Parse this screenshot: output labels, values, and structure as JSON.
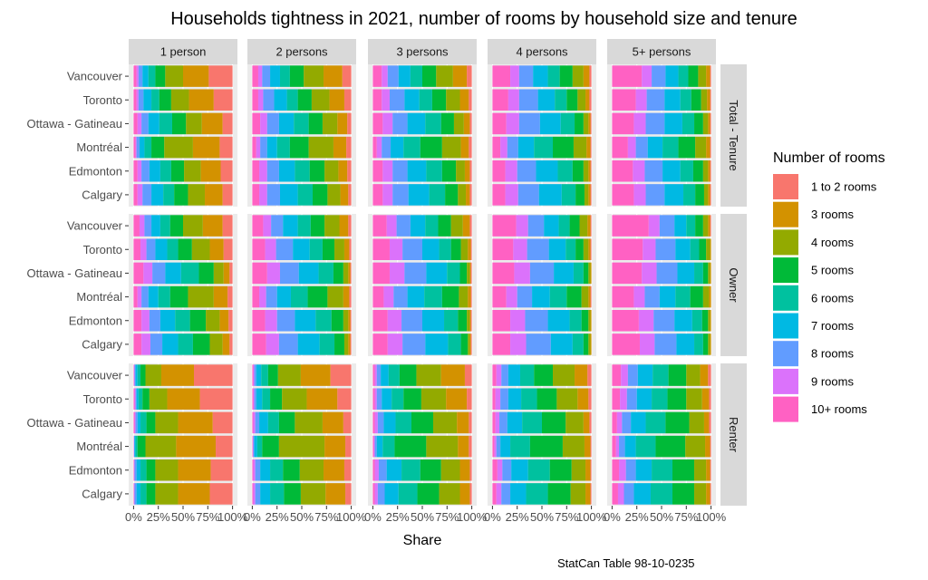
{
  "chart_data": {
    "type": "bar",
    "orientation": "horizontal",
    "stacked": true,
    "position": "fill",
    "title": "Households tightness in 2021, number of rooms by household size and tenure",
    "xlabel": "Share",
    "ylabel": "",
    "caption": "StatCan Table 98-10-0235",
    "x_ticks": [
      "0%",
      "25%",
      "50%",
      "75%",
      "100%"
    ],
    "xlim": [
      0,
      1
    ],
    "cities": [
      "Vancouver",
      "Toronto",
      "Ottawa - Gatineau",
      "Montréal",
      "Edmonton",
      "Calgary"
    ],
    "household_sizes": [
      "1 person",
      "2 persons",
      "3 persons",
      "4 persons",
      "5+ persons"
    ],
    "tenures": [
      "Total - Tenure",
      "Owner",
      "Renter"
    ],
    "legend": {
      "title": "Number of rooms",
      "position": "right",
      "categories": [
        "1 to 2 rooms",
        "3 rooms",
        "4 rooms",
        "5 rooms",
        "6 rooms",
        "7 rooms",
        "8 rooms",
        "9 rooms",
        "10+ rooms"
      ],
      "colors": [
        "#F8766D",
        "#D39200",
        "#93AA00",
        "#00BA38",
        "#00C19F",
        "#00B9E3",
        "#619CFF",
        "#DB72FB",
        "#FF61C3"
      ]
    },
    "stack_order_note": "values listed from 1 to 2 rooms through 10+ rooms; 10+ rooms is drawn at the left (0%) end",
    "panels": {
      "Total - Tenure": {
        "1 person": {
          "Vancouver": [
            0.24,
            0.26,
            0.18,
            0.1,
            0.07,
            0.06,
            0.04,
            0.02,
            0.03
          ],
          "Toronto": [
            0.19,
            0.25,
            0.18,
            0.12,
            0.08,
            0.08,
            0.05,
            0.02,
            0.03
          ],
          "Ottawa - Gatineau": [
            0.1,
            0.21,
            0.16,
            0.14,
            0.13,
            0.11,
            0.07,
            0.04,
            0.04
          ],
          "Montréal": [
            0.13,
            0.27,
            0.29,
            0.13,
            0.07,
            0.05,
            0.03,
            0.01,
            0.02
          ],
          "Edmonton": [
            0.12,
            0.2,
            0.17,
            0.13,
            0.11,
            0.11,
            0.08,
            0.04,
            0.04
          ],
          "Calgary": [
            0.1,
            0.18,
            0.17,
            0.14,
            0.11,
            0.12,
            0.09,
            0.05,
            0.04
          ]
        },
        "2 persons": {
          "Vancouver": [
            0.09,
            0.19,
            0.2,
            0.14,
            0.1,
            0.1,
            0.08,
            0.04,
            0.06
          ],
          "Toronto": [
            0.07,
            0.15,
            0.18,
            0.14,
            0.11,
            0.13,
            0.11,
            0.05,
            0.06
          ],
          "Ottawa - Gatineau": [
            0.04,
            0.1,
            0.15,
            0.14,
            0.15,
            0.15,
            0.12,
            0.07,
            0.08
          ],
          "Montréal": [
            0.05,
            0.13,
            0.25,
            0.19,
            0.13,
            0.1,
            0.07,
            0.04,
            0.04
          ],
          "Edmonton": [
            0.04,
            0.09,
            0.14,
            0.15,
            0.15,
            0.16,
            0.12,
            0.08,
            0.07
          ],
          "Calgary": [
            0.03,
            0.08,
            0.13,
            0.15,
            0.15,
            0.18,
            0.13,
            0.08,
            0.07
          ]
        },
        "3 persons": {
          "Vancouver": [
            0.05,
            0.14,
            0.17,
            0.14,
            0.12,
            0.12,
            0.11,
            0.06,
            0.09
          ],
          "Toronto": [
            0.03,
            0.09,
            0.14,
            0.14,
            0.13,
            0.15,
            0.15,
            0.08,
            0.09
          ],
          "Ottawa - Gatineau": [
            0.02,
            0.06,
            0.1,
            0.13,
            0.16,
            0.18,
            0.15,
            0.1,
            0.1
          ],
          "Montréal": [
            0.03,
            0.08,
            0.19,
            0.22,
            0.17,
            0.13,
            0.09,
            0.05,
            0.04
          ],
          "Edmonton": [
            0.02,
            0.05,
            0.09,
            0.14,
            0.16,
            0.19,
            0.15,
            0.1,
            0.1
          ],
          "Calgary": [
            0.02,
            0.04,
            0.08,
            0.13,
            0.16,
            0.21,
            0.16,
            0.1,
            0.1
          ]
        },
        "4 persons": {
          "Vancouver": [
            0.02,
            0.06,
            0.11,
            0.13,
            0.12,
            0.15,
            0.14,
            0.09,
            0.18
          ],
          "Toronto": [
            0.02,
            0.04,
            0.08,
            0.11,
            0.12,
            0.17,
            0.19,
            0.11,
            0.16
          ],
          "Ottawa - Gatineau": [
            0.01,
            0.02,
            0.05,
            0.09,
            0.14,
            0.21,
            0.21,
            0.13,
            0.14
          ],
          "Montréal": [
            0.01,
            0.04,
            0.13,
            0.21,
            0.19,
            0.16,
            0.11,
            0.07,
            0.08
          ],
          "Edmonton": [
            0.01,
            0.02,
            0.05,
            0.11,
            0.15,
            0.22,
            0.19,
            0.12,
            0.13
          ],
          "Calgary": [
            0.01,
            0.02,
            0.04,
            0.09,
            0.14,
            0.23,
            0.21,
            0.13,
            0.13
          ]
        },
        "5+ persons": {
          "Vancouver": [
            0.01,
            0.04,
            0.08,
            0.1,
            0.1,
            0.13,
            0.14,
            0.1,
            0.3
          ],
          "Toronto": [
            0.01,
            0.03,
            0.06,
            0.1,
            0.11,
            0.16,
            0.18,
            0.11,
            0.24
          ],
          "Ottawa - Gatineau": [
            0.01,
            0.02,
            0.05,
            0.09,
            0.12,
            0.18,
            0.19,
            0.12,
            0.22
          ],
          "Montréal": [
            0.01,
            0.04,
            0.11,
            0.17,
            0.16,
            0.15,
            0.12,
            0.08,
            0.16
          ],
          "Edmonton": [
            0.01,
            0.02,
            0.05,
            0.1,
            0.13,
            0.18,
            0.18,
            0.12,
            0.21
          ],
          "Calgary": [
            0.01,
            0.02,
            0.04,
            0.09,
            0.12,
            0.19,
            0.19,
            0.12,
            0.22
          ]
        }
      },
      "Owner": {
        "1 person": {
          "Vancouver": [
            0.1,
            0.2,
            0.2,
            0.13,
            0.1,
            0.09,
            0.07,
            0.05,
            0.06
          ],
          "Toronto": [
            0.09,
            0.14,
            0.18,
            0.14,
            0.11,
            0.12,
            0.09,
            0.06,
            0.07
          ],
          "Ottawa - Gatineau": [
            0.03,
            0.06,
            0.1,
            0.15,
            0.18,
            0.16,
            0.13,
            0.09,
            0.1
          ],
          "Montréal": [
            0.05,
            0.14,
            0.26,
            0.18,
            0.12,
            0.1,
            0.07,
            0.04,
            0.04
          ],
          "Edmonton": [
            0.04,
            0.09,
            0.14,
            0.16,
            0.15,
            0.15,
            0.11,
            0.08,
            0.08
          ],
          "Calgary": [
            0.03,
            0.07,
            0.13,
            0.17,
            0.15,
            0.16,
            0.12,
            0.09,
            0.08
          ]
        },
        "2 persons": {
          "Vancouver": [
            0.03,
            0.09,
            0.15,
            0.14,
            0.13,
            0.15,
            0.12,
            0.08,
            0.11
          ],
          "Toronto": [
            0.02,
            0.05,
            0.1,
            0.12,
            0.13,
            0.17,
            0.17,
            0.11,
            0.13
          ],
          "Ottawa - Gatineau": [
            0.01,
            0.02,
            0.05,
            0.1,
            0.15,
            0.2,
            0.19,
            0.13,
            0.15
          ],
          "Montréal": [
            0.02,
            0.06,
            0.16,
            0.2,
            0.17,
            0.14,
            0.11,
            0.07,
            0.07
          ],
          "Edmonton": [
            0.01,
            0.02,
            0.05,
            0.12,
            0.16,
            0.21,
            0.18,
            0.12,
            0.13
          ],
          "Calgary": [
            0.01,
            0.02,
            0.04,
            0.1,
            0.15,
            0.22,
            0.19,
            0.13,
            0.14
          ]
        },
        "3 persons": {
          "Vancouver": [
            0.02,
            0.07,
            0.12,
            0.13,
            0.13,
            0.15,
            0.14,
            0.1,
            0.14
          ],
          "Toronto": [
            0.01,
            0.03,
            0.07,
            0.1,
            0.12,
            0.17,
            0.2,
            0.13,
            0.17
          ],
          "Ottawa - Gatineau": [
            0.01,
            0.01,
            0.03,
            0.07,
            0.13,
            0.21,
            0.22,
            0.15,
            0.17
          ],
          "Montréal": [
            0.01,
            0.03,
            0.09,
            0.17,
            0.18,
            0.17,
            0.14,
            0.1,
            0.11
          ],
          "Edmonton": [
            0.01,
            0.01,
            0.03,
            0.09,
            0.14,
            0.22,
            0.21,
            0.14,
            0.15
          ],
          "Calgary": [
            0.01,
            0.01,
            0.02,
            0.07,
            0.13,
            0.23,
            0.23,
            0.15,
            0.15
          ]
        },
        "4 persons": {
          "Vancouver": [
            0.01,
            0.03,
            0.08,
            0.1,
            0.11,
            0.15,
            0.16,
            0.12,
            0.24
          ],
          "Toronto": [
            0.01,
            0.02,
            0.05,
            0.08,
            0.1,
            0.17,
            0.22,
            0.14,
            0.21
          ],
          "Ottawa - Gatineau": [
            0.0,
            0.01,
            0.02,
            0.05,
            0.1,
            0.2,
            0.24,
            0.16,
            0.22
          ],
          "Montréal": [
            0.01,
            0.02,
            0.07,
            0.15,
            0.17,
            0.18,
            0.15,
            0.11,
            0.14
          ],
          "Edmonton": [
            0.0,
            0.01,
            0.02,
            0.07,
            0.12,
            0.22,
            0.23,
            0.15,
            0.18
          ],
          "Calgary": [
            0.0,
            0.01,
            0.02,
            0.05,
            0.11,
            0.22,
            0.25,
            0.16,
            0.18
          ]
        },
        "5+ persons": {
          "Vancouver": [
            0.01,
            0.02,
            0.05,
            0.08,
            0.09,
            0.12,
            0.15,
            0.11,
            0.37
          ],
          "Toronto": [
            0.0,
            0.01,
            0.04,
            0.07,
            0.09,
            0.15,
            0.2,
            0.13,
            0.31
          ],
          "Ottawa - Gatineau": [
            0.0,
            0.01,
            0.02,
            0.05,
            0.09,
            0.17,
            0.21,
            0.15,
            0.3
          ],
          "Montréal": [
            0.0,
            0.02,
            0.06,
            0.13,
            0.15,
            0.16,
            0.15,
            0.11,
            0.22
          ],
          "Edmonton": [
            0.0,
            0.01,
            0.02,
            0.06,
            0.1,
            0.18,
            0.21,
            0.15,
            0.27
          ],
          "Calgary": [
            0.0,
            0.01,
            0.02,
            0.05,
            0.09,
            0.18,
            0.22,
            0.15,
            0.28
          ]
        }
      },
      "Renter": {
        "1 person": {
          "Vancouver": [
            0.39,
            0.33,
            0.16,
            0.05,
            0.03,
            0.02,
            0.01,
            0.005,
            0.005
          ],
          "Toronto": [
            0.33,
            0.33,
            0.18,
            0.07,
            0.04,
            0.02,
            0.01,
            0.01,
            0.01
          ],
          "Ottawa - Gatineau": [
            0.2,
            0.35,
            0.23,
            0.09,
            0.06,
            0.03,
            0.02,
            0.01,
            0.01
          ],
          "Montréal": [
            0.17,
            0.4,
            0.31,
            0.08,
            0.02,
            0.01,
            0.005,
            0.0025,
            0.0025
          ],
          "Edmonton": [
            0.22,
            0.33,
            0.23,
            0.09,
            0.06,
            0.04,
            0.02,
            0.005,
            0.005
          ],
          "Calgary": [
            0.23,
            0.32,
            0.23,
            0.09,
            0.06,
            0.04,
            0.02,
            0.005,
            0.005
          ]
        },
        "2 persons": {
          "Vancouver": [
            0.21,
            0.3,
            0.23,
            0.1,
            0.07,
            0.05,
            0.02,
            0.01,
            0.01
          ],
          "Toronto": [
            0.14,
            0.31,
            0.25,
            0.12,
            0.08,
            0.06,
            0.02,
            0.01,
            0.01
          ],
          "Ottawa - Gatineau": [
            0.08,
            0.21,
            0.28,
            0.16,
            0.11,
            0.09,
            0.04,
            0.02,
            0.01
          ],
          "Montréal": [
            0.06,
            0.21,
            0.46,
            0.17,
            0.05,
            0.03,
            0.01,
            0.005,
            0.005
          ],
          "Edmonton": [
            0.07,
            0.21,
            0.24,
            0.17,
            0.13,
            0.1,
            0.05,
            0.02,
            0.01
          ],
          "Calgary": [
            0.06,
            0.2,
            0.25,
            0.17,
            0.14,
            0.1,
            0.05,
            0.02,
            0.01
          ]
        },
        "3 persons": {
          "Vancouver": [
            0.07,
            0.24,
            0.25,
            0.17,
            0.11,
            0.08,
            0.04,
            0.02,
            0.02
          ],
          "Toronto": [
            0.05,
            0.21,
            0.25,
            0.18,
            0.12,
            0.1,
            0.05,
            0.02,
            0.02
          ],
          "Ottawa - Gatineau": [
            0.03,
            0.12,
            0.24,
            0.22,
            0.16,
            0.12,
            0.06,
            0.03,
            0.02
          ],
          "Montréal": [
            0.03,
            0.11,
            0.32,
            0.32,
            0.12,
            0.06,
            0.02,
            0.01,
            0.01
          ],
          "Edmonton": [
            0.02,
            0.1,
            0.19,
            0.21,
            0.19,
            0.15,
            0.08,
            0.04,
            0.02
          ],
          "Calgary": [
            0.02,
            0.1,
            0.21,
            0.22,
            0.19,
            0.14,
            0.07,
            0.03,
            0.02
          ]
        },
        "4 persons": {
          "Vancouver": [
            0.04,
            0.13,
            0.22,
            0.19,
            0.14,
            0.12,
            0.07,
            0.05,
            0.04
          ],
          "Toronto": [
            0.03,
            0.11,
            0.21,
            0.2,
            0.16,
            0.13,
            0.08,
            0.05,
            0.03
          ],
          "Ottawa - Gatineau": [
            0.02,
            0.06,
            0.18,
            0.24,
            0.2,
            0.15,
            0.08,
            0.04,
            0.03
          ],
          "Montréal": [
            0.01,
            0.06,
            0.22,
            0.33,
            0.2,
            0.1,
            0.04,
            0.02,
            0.02
          ],
          "Edmonton": [
            0.01,
            0.05,
            0.14,
            0.22,
            0.22,
            0.17,
            0.09,
            0.05,
            0.05
          ],
          "Calgary": [
            0.01,
            0.05,
            0.15,
            0.23,
            0.22,
            0.16,
            0.09,
            0.05,
            0.04
          ]
        },
        "5+ persons": {
          "Vancouver": [
            0.03,
            0.08,
            0.14,
            0.18,
            0.16,
            0.15,
            0.1,
            0.07,
            0.09
          ],
          "Toronto": [
            0.02,
            0.07,
            0.16,
            0.19,
            0.16,
            0.15,
            0.1,
            0.07,
            0.08
          ],
          "Ottawa - Gatineau": [
            0.02,
            0.05,
            0.15,
            0.24,
            0.2,
            0.15,
            0.09,
            0.05,
            0.05
          ],
          "Montréal": [
            0.01,
            0.05,
            0.2,
            0.3,
            0.2,
            0.11,
            0.06,
            0.03,
            0.04
          ],
          "Edmonton": [
            0.01,
            0.04,
            0.12,
            0.22,
            0.21,
            0.16,
            0.1,
            0.07,
            0.07
          ],
          "Calgary": [
            0.01,
            0.04,
            0.12,
            0.22,
            0.22,
            0.17,
            0.1,
            0.06,
            0.06
          ]
        }
      }
    }
  }
}
